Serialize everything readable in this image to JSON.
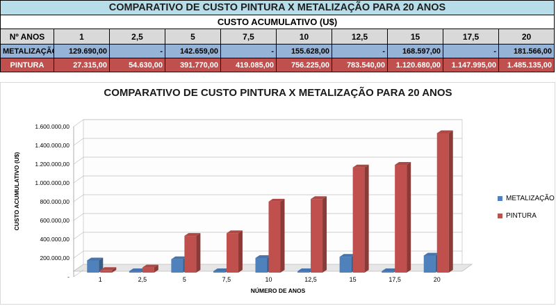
{
  "table": {
    "title": "COMPARATIVO DE CUSTO PINTURA X METALIZAÇÃO PARA 20 ANOS",
    "subtitle": "CUSTO ACUMULATIVO (U$)",
    "header_label": "Nº ANOS",
    "years": [
      "1",
      "2,5",
      "5",
      "7,5",
      "10",
      "12,5",
      "15",
      "17,5",
      "20"
    ],
    "rows": [
      {
        "label": "METALIZAÇÃO",
        "values": [
          "129.690,00",
          "-",
          "142.659,00",
          "-",
          "155.628,00",
          "-",
          "168.597,00",
          "-",
          "181.566,00"
        ]
      },
      {
        "label": "PINTURA",
        "values": [
          "27.315,00",
          "54.630,00",
          "391.770,00",
          "419.085,00",
          "756.225,00",
          "783.540,00",
          "1.120.680,00",
          "1.147.995,00",
          "1.485.135,00"
        ]
      }
    ]
  },
  "colors": {
    "title_bg": "#b7dde8",
    "header_bg": "#d9d9d9",
    "metalizacao": "#4f81bd",
    "metalizacao_row_bg": "#95b3d7",
    "pintura": "#c0504d"
  },
  "chart_data": {
    "type": "bar",
    "title": "COMPARATIVO DE CUSTO PINTURA X METALIZAÇÃO PARA 20 ANOS",
    "xlabel": "NÚMERO DE ANOS",
    "ylabel": "CUSTO ACUMULATIVO (U$)",
    "categories": [
      "1",
      "2,5",
      "5",
      "7,5",
      "10",
      "12,5",
      "15",
      "17,5",
      "20"
    ],
    "series": [
      {
        "name": "METALIZAÇÃO",
        "color": "#4f81bd",
        "values": [
          129690,
          0,
          142659,
          0,
          155628,
          0,
          168597,
          0,
          181566
        ]
      },
      {
        "name": "PINTURA",
        "color": "#c0504d",
        "values": [
          27315,
          54630,
          391770,
          419085,
          756225,
          783540,
          1120680,
          1147995,
          1485135
        ]
      }
    ],
    "ylim": [
      0,
      1600000
    ],
    "yticks": [
      "-",
      "200.000,00",
      "400.000,00",
      "600.000,00",
      "800.000,00",
      "1.000.000,00",
      "1.200.000,00",
      "1.400.000,00",
      "1.600.000,00"
    ],
    "ytick_values": [
      0,
      200000,
      400000,
      600000,
      800000,
      1000000,
      1200000,
      1400000,
      1600000
    ],
    "grid": true,
    "legend": "right",
    "style": "3d-column"
  }
}
